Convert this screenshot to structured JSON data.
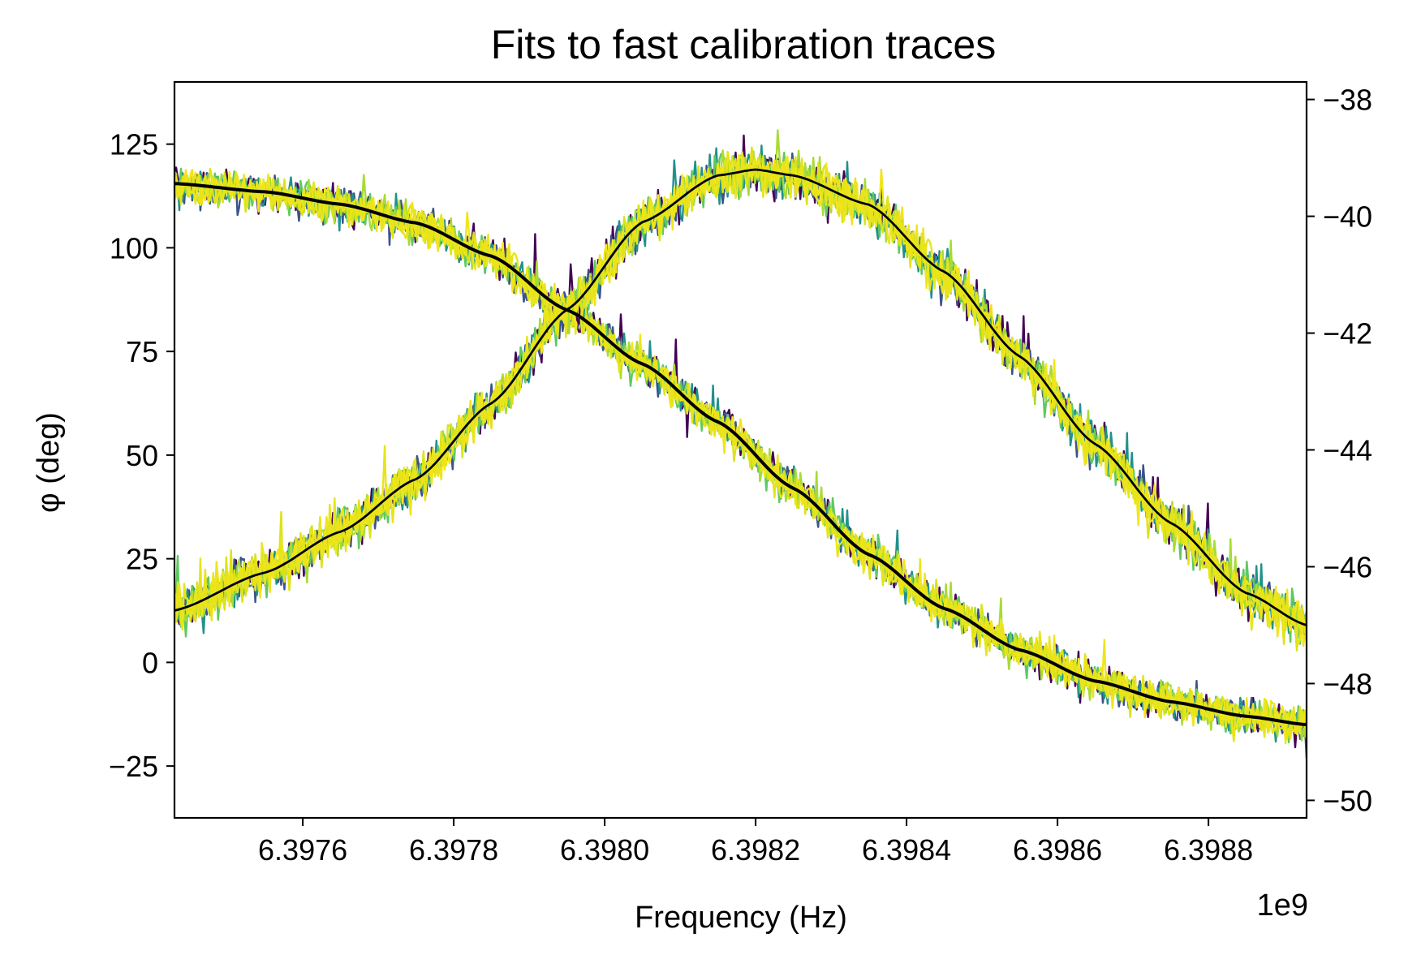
{
  "chart_data": {
    "type": "line",
    "title": "Fits to fast calibration traces",
    "xlabel": "Frequency (Hz)",
    "ylabel": "φ (deg)",
    "x_offset_label": "1e9",
    "xlim": [
      6.39743,
      6.39893
    ],
    "ylim": [
      -37.5,
      140
    ],
    "y2lim": [
      -50.3,
      -37.7
    ],
    "x_ticks": [
      6.3976,
      6.3978,
      6.398,
      6.3982,
      6.3984,
      6.3986,
      6.3988
    ],
    "x_tick_labels": [
      "6.3976",
      "6.3978",
      "6.3980",
      "6.3982",
      "6.3984",
      "6.3986",
      "6.3988"
    ],
    "y_ticks": [
      -25,
      0,
      25,
      50,
      75,
      100,
      125
    ],
    "y_tick_labels": [
      "−25",
      "0",
      "25",
      "50",
      "75",
      "100",
      "125"
    ],
    "y2_ticks": [
      -50,
      -48,
      -46,
      -44,
      -42,
      -40,
      -38
    ],
    "y2_tick_labels": [
      "−50",
      "−48",
      "−46",
      "−44",
      "−42",
      "−40",
      "−38"
    ],
    "grid": false,
    "trace_colors": [
      "#440154",
      "#3b528b",
      "#21918c",
      "#5ec962",
      "#a8db34",
      "#dde318",
      "#f0e51d",
      "#e8e419"
    ],
    "fit_color": "#000000",
    "series": [
      {
        "axis": "left",
        "x": [
          6.39743,
          6.39755,
          6.39765,
          6.39775,
          6.39785,
          6.39795,
          6.39805,
          6.39815,
          6.39825,
          6.39835,
          6.39845,
          6.39855,
          6.39865,
          6.39875,
          6.39885,
          6.39893
        ],
        "y": [
          115.5,
          113.5,
          110.5,
          106,
          98,
          85,
          72,
          58,
          42,
          26,
          13,
          3,
          -4.5,
          -9.5,
          -13,
          -15
        ]
      },
      {
        "axis": "right",
        "x": [
          6.39743,
          6.39755,
          6.39765,
          6.39775,
          6.39785,
          6.39795,
          6.39805,
          6.39815,
          6.3982,
          6.39825,
          6.39835,
          6.39845,
          6.39855,
          6.39865,
          6.39875,
          6.39885,
          6.39893
        ],
        "y": [
          -46.75,
          -46.1,
          -45.4,
          -44.5,
          -43.2,
          -41.6,
          -40.1,
          -39.3,
          -39.2,
          -39.3,
          -39.8,
          -40.95,
          -42.4,
          -43.9,
          -45.25,
          -46.45,
          -47.0
        ]
      }
    ]
  }
}
